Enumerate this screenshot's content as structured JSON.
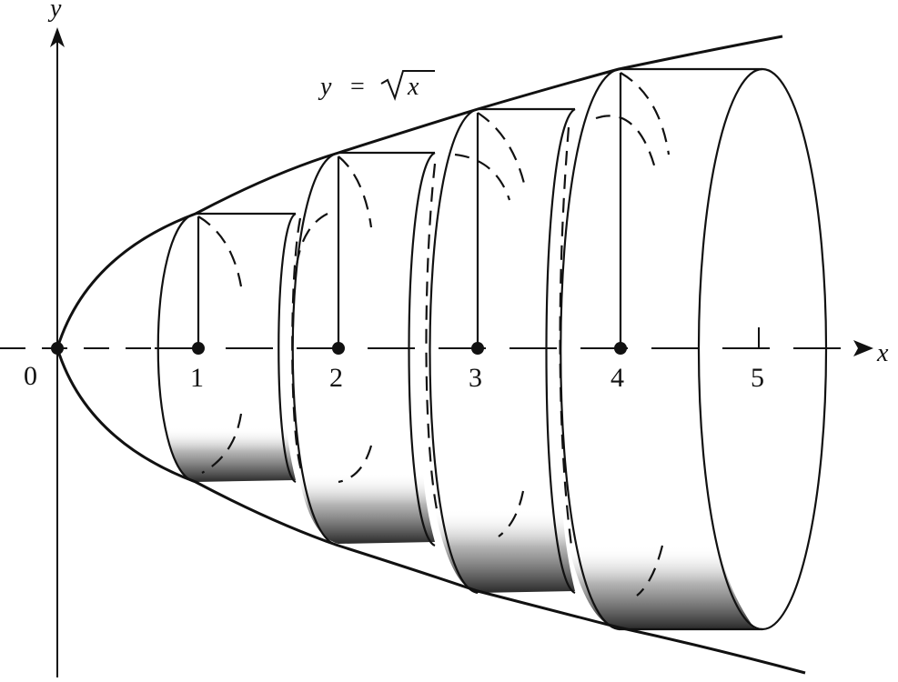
{
  "figure": {
    "curve_label_y": "y",
    "curve_label_eq": "=",
    "curve_label_x": "x",
    "x_axis_label": "x",
    "y_axis_label": "y",
    "origin_label": "0",
    "ticks": [
      "1",
      "2",
      "3",
      "4",
      "5"
    ]
  },
  "colors": {
    "ink": "#111111",
    "shade_dark": "#2a2a2a",
    "shade_light": "#9a9a9a",
    "background": "#ffffff"
  }
}
